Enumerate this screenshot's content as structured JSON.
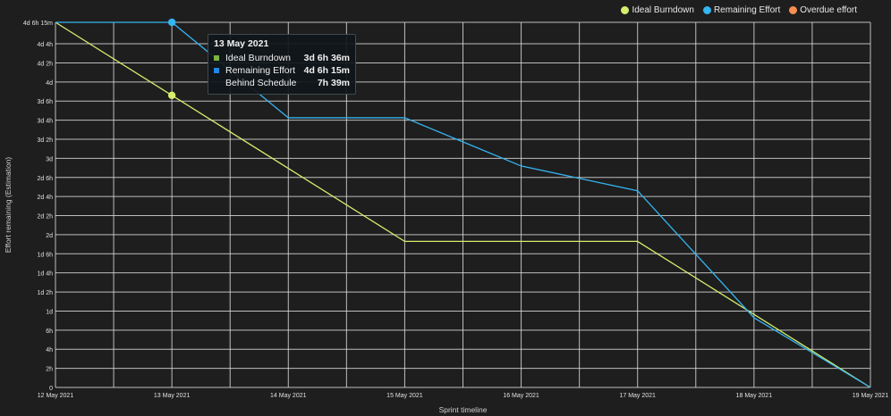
{
  "legend": [
    {
      "label": "Ideal Burndown",
      "color": "#d5ee6e"
    },
    {
      "label": "Remaining Effort",
      "color": "#35b5f1"
    },
    {
      "label": "Overdue effort",
      "color": "#f58e52"
    }
  ],
  "tooltip": {
    "date": "13 May 2021",
    "rows": [
      {
        "label": "Ideal Burndown",
        "value": "3d 6h 36m",
        "color": "#7cb342"
      },
      {
        "label": "Remaining Effort",
        "value": "4d 6h 15m",
        "color": "#1e88e5"
      },
      {
        "label": "Behind Schedule",
        "value": "7h 39m",
        "color": ""
      }
    ]
  },
  "chart_data": {
    "type": "line",
    "xlabel": "Sprint timeline",
    "ylabel": "Effort remaining (Estimation)",
    "x_ticks": [
      "12 May 2021",
      "13 May 2021",
      "14 May 2021",
      "15 May 2021",
      "16 May 2021",
      "17 May 2021",
      "18 May 2021",
      "19 May 2021"
    ],
    "y_unit": "hours (8h = 1d)",
    "y_ticks": [
      {
        "value": 0,
        "label": "0"
      },
      {
        "value": 2,
        "label": "2h"
      },
      {
        "value": 4,
        "label": "4h"
      },
      {
        "value": 6,
        "label": "6h"
      },
      {
        "value": 8,
        "label": "1d"
      },
      {
        "value": 10,
        "label": "1d 2h"
      },
      {
        "value": 12,
        "label": "1d 4h"
      },
      {
        "value": 14,
        "label": "1d 6h"
      },
      {
        "value": 16,
        "label": "2d"
      },
      {
        "value": 18,
        "label": "2d 2h"
      },
      {
        "value": 20,
        "label": "2d 4h"
      },
      {
        "value": 22,
        "label": "2d 6h"
      },
      {
        "value": 24,
        "label": "3d"
      },
      {
        "value": 26,
        "label": "3d 2h"
      },
      {
        "value": 28,
        "label": "3d 4h"
      },
      {
        "value": 30,
        "label": "3d 6h"
      },
      {
        "value": 32,
        "label": "4d"
      },
      {
        "value": 34,
        "label": "4d 2h"
      },
      {
        "value": 36,
        "label": "4d 4h"
      },
      {
        "value": 38.25,
        "label": "4d 6h 15m"
      }
    ],
    "ylim": [
      0,
      38.25
    ],
    "grid": true,
    "legend_position": "top-right",
    "series": [
      {
        "name": "Ideal Burndown",
        "color": "#d5ee6e",
        "x": [
          0,
          1,
          3,
          4,
          5,
          6,
          7
        ],
        "values": [
          38.25,
          30.6,
          15.3,
          15.3,
          15.3,
          7.65,
          0
        ]
      },
      {
        "name": "Remaining Effort",
        "color": "#35b5f1",
        "x": [
          0,
          1,
          2,
          3,
          4,
          5,
          6,
          7
        ],
        "values": [
          38.25,
          38.25,
          28.25,
          28.25,
          23.2,
          20.6,
          7.3,
          0
        ]
      },
      {
        "name": "Overdue effort",
        "color": "#f58e52",
        "x": [],
        "values": []
      }
    ],
    "highlight": {
      "x": 1
    }
  }
}
